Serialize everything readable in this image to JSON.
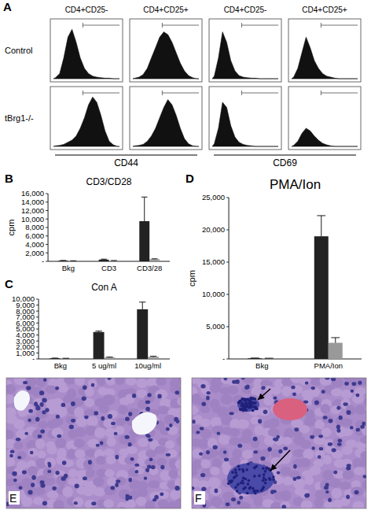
{
  "panel_a": {
    "letter": "A",
    "columns": [
      "CD4+CD25-",
      "CD4+CD25+",
      "CD4+CD25-",
      "CD4+CD25+"
    ],
    "markers": [
      {
        "label": "CD44"
      },
      {
        "label": "CD69"
      }
    ],
    "ylim": [
      0,
      100
    ],
    "rows": [
      {
        "label": "Control",
        "histograms": [
          {
            "values": [
              2,
              10,
              40,
              80,
              95,
              70,
              40,
              20,
              10,
              5,
              3,
              2,
              1,
              1,
              0,
              0
            ]
          },
          {
            "values": [
              1,
              3,
              8,
              20,
              40,
              60,
              80,
              90,
              85,
              70,
              50,
              30,
              15,
              6,
              2,
              0
            ]
          },
          {
            "values": [
              5,
              40,
              90,
              70,
              35,
              15,
              6,
              3,
              2,
              1,
              1,
              0,
              0,
              0,
              0,
              0
            ]
          },
          {
            "values": [
              3,
              20,
              50,
              80,
              60,
              35,
              20,
              10,
              5,
              3,
              1,
              0,
              0,
              0,
              0,
              0
            ]
          }
        ]
      },
      {
        "label": "tBrg1-/-",
        "histograms": [
          {
            "values": [
              1,
              2,
              4,
              8,
              12,
              20,
              35,
              55,
              80,
              95,
              85,
              60,
              30,
              10,
              3,
              0
            ]
          },
          {
            "values": [
              1,
              2,
              4,
              10,
              20,
              35,
              55,
              75,
              90,
              80,
              60,
              35,
              15,
              5,
              1,
              0
            ]
          },
          {
            "values": [
              5,
              35,
              85,
              75,
              40,
              18,
              8,
              4,
              2,
              1,
              0,
              0,
              0,
              0,
              0,
              0
            ]
          },
          {
            "values": [
              2,
              10,
              25,
              35,
              30,
              20,
              12,
              6,
              3,
              1,
              0,
              0,
              0,
              0,
              0,
              0
            ]
          }
        ]
      }
    ]
  },
  "chart_data": [
    {
      "letter": "B",
      "type": "bar",
      "title": "CD3/CD28",
      "y_label": "cpm",
      "categories": [
        "Bkg",
        "CD3",
        "CD3/28"
      ],
      "series": [
        {
          "color": "#222222",
          "values": [
            150,
            400,
            9500
          ],
          "errors": [
            60,
            120,
            5700
          ]
        },
        {
          "color": "#999999",
          "values": [
            100,
            150,
            500
          ],
          "errors": [
            40,
            50,
            100
          ]
        }
      ],
      "ylim": [
        0,
        16000
      ],
      "yticks": [
        {
          "value": 0,
          "label": "-"
        },
        {
          "value": 2000,
          "label": "2,000"
        },
        {
          "value": 4000,
          "label": "4,000"
        },
        {
          "value": 6000,
          "label": "6,000"
        },
        {
          "value": 8000,
          "label": "8,000"
        },
        {
          "value": 10000,
          "label": "10,000"
        },
        {
          "value": 12000,
          "label": "12,000"
        },
        {
          "value": 14000,
          "label": "14,000"
        },
        {
          "value": 16000,
          "label": "16,000"
        }
      ]
    },
    {
      "letter": "C",
      "type": "bar",
      "title": "Con A",
      "categories": [
        "Bkg",
        "5 ug/ml",
        "10ug/ml"
      ],
      "series": [
        {
          "color": "#222222",
          "values": [
            100,
            4500,
            8300
          ],
          "errors": [
            40,
            150,
            1200
          ]
        },
        {
          "color": "#999999",
          "values": [
            80,
            250,
            350
          ],
          "errors": [
            30,
            60,
            100
          ]
        }
      ],
      "ylim": [
        0,
        10000
      ],
      "yticks": [
        {
          "value": 0,
          "label": "-"
        },
        {
          "value": 1000,
          "label": "1,000"
        },
        {
          "value": 2000,
          "label": "2,000"
        },
        {
          "value": 3000,
          "label": "3,000"
        },
        {
          "value": 4000,
          "label": "4,000"
        },
        {
          "value": 5000,
          "label": "5,000"
        },
        {
          "value": 6000,
          "label": "6,000"
        },
        {
          "value": 7000,
          "label": "7,000"
        },
        {
          "value": 8000,
          "label": "8,000"
        },
        {
          "value": 9000,
          "label": "9,000"
        },
        {
          "value": 10000,
          "label": "10,000"
        }
      ]
    },
    {
      "letter": "D",
      "type": "bar",
      "title": "PMA/Ion",
      "y_label": "cpm",
      "categories": [
        "Bkg",
        "PMA/Ion"
      ],
      "series": [
        {
          "color": "#222222",
          "values": [
            100,
            19000
          ],
          "errors": [
            40,
            3200
          ]
        },
        {
          "color": "#999999",
          "values": [
            80,
            2500
          ],
          "errors": [
            30,
            800
          ]
        }
      ],
      "ylim": [
        0,
        25000
      ],
      "yticks": [
        {
          "value": 0,
          "label": "-"
        },
        {
          "value": 5000,
          "label": "5,000"
        },
        {
          "value": 10000,
          "label": "10,000"
        },
        {
          "value": 15000,
          "label": "15,000"
        },
        {
          "value": 20000,
          "label": "20,000"
        },
        {
          "value": 25000,
          "label": "25,000"
        }
      ]
    }
  ],
  "micrographs": [
    {
      "letter": "E"
    },
    {
      "letter": "F"
    }
  ]
}
